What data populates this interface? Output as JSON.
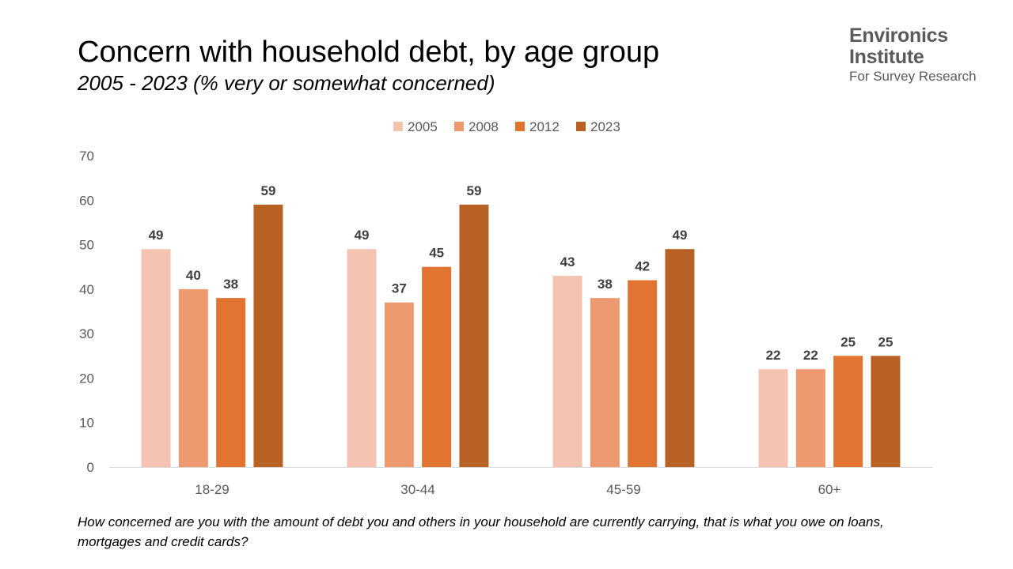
{
  "header": {
    "title": "Concern with household debt, by age group",
    "subtitle": "2005 - 2023 (% very or somewhat concerned)"
  },
  "logo": {
    "line1": "Environics",
    "line2": "Institute",
    "line3": "For Survey Research"
  },
  "footnote": "How concerned are you with the amount of debt you and others in your household are currently carrying, that is what you owe on loans, mortgages and credit cards?",
  "chart_data": {
    "type": "bar",
    "categories": [
      "18-29",
      "30-44",
      "45-59",
      "60+"
    ],
    "series": [
      {
        "name": "2005",
        "color": "#F4C3B1",
        "values": [
          49,
          49,
          43,
          22
        ]
      },
      {
        "name": "2008",
        "color": "#EE9A70",
        "values": [
          40,
          37,
          38,
          22
        ]
      },
      {
        "name": "2012",
        "color": "#E07430",
        "values": [
          38,
          45,
          42,
          25
        ]
      },
      {
        "name": "2023",
        "color": "#B86125",
        "values": [
          59,
          59,
          49,
          25
        ]
      }
    ],
    "y_ticks": [
      "0",
      "10",
      "20",
      "30",
      "40",
      "50",
      "60",
      "70"
    ],
    "ylim": [
      0,
      70
    ],
    "grid": false,
    "legend_position": "top-center"
  }
}
